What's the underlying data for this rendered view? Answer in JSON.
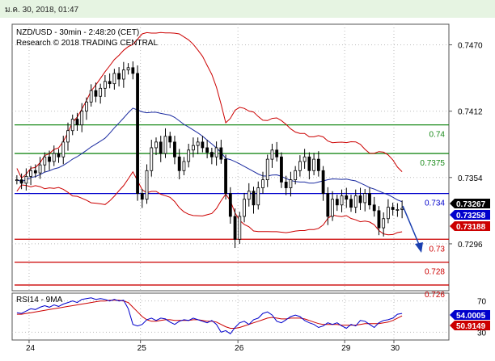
{
  "window": {
    "timestamp": "ม.ค. 30, 2018, 01:47"
  },
  "chart_data": [
    {
      "type": "candlestick",
      "title": "NZD/USD - 30min - 2:48:20 (CET)",
      "subtitle": "Research © 2018 TRADING CENTRAL",
      "y_axis_labels": [
        "0.7470",
        "0.7412",
        "0.7354",
        "0.7296"
      ],
      "ylim": [
        0.7255,
        0.7488
      ],
      "x_labels": [
        "24",
        "25",
        "26",
        "29",
        "30"
      ],
      "grid": true,
      "levels": [
        {
          "label": "0.74",
          "value": 0.74,
          "color": "#1a8a1a"
        },
        {
          "label": "0.7375",
          "value": 0.7375,
          "color": "#1a8a1a"
        },
        {
          "label": "0.734",
          "value": 0.734,
          "color": "#0000cc"
        },
        {
          "label": "0.73",
          "value": 0.73,
          "color": "#cc0000"
        },
        {
          "label": "0.728",
          "value": 0.728,
          "color": "#cc0000"
        },
        {
          "label": "0.726",
          "value": 0.726,
          "color": "#cc0000"
        }
      ],
      "price_badges": [
        {
          "label": "0.73267",
          "color": "#000000"
        },
        {
          "label": "0.73258",
          "color": "#0000cc"
        },
        {
          "label": "0.73188",
          "color": "#cc0000"
        }
      ],
      "series": [
        {
          "name": "close",
          "values": [
            0.7352,
            0.7349,
            0.7355,
            0.736,
            0.7358,
            0.7365,
            0.7372,
            0.7368,
            0.7375,
            0.7372,
            0.7385,
            0.7395,
            0.7405,
            0.74,
            0.7412,
            0.742,
            0.743,
            0.7425,
            0.7432,
            0.7438,
            0.7436,
            0.7445,
            0.744,
            0.7448,
            0.745,
            0.7445,
            0.734,
            0.7335,
            0.736,
            0.738,
            0.7385,
            0.7375,
            0.739,
            0.7385,
            0.7372,
            0.736,
            0.7368,
            0.7378,
            0.7382,
            0.7385,
            0.738,
            0.7376,
            0.7372,
            0.738,
            0.737,
            0.734,
            0.732,
            0.73,
            0.732,
            0.7335,
            0.7342,
            0.733,
            0.7345,
            0.7352,
            0.737,
            0.7378,
            0.7372,
            0.735,
            0.7345,
            0.7352,
            0.736,
            0.7368,
            0.7372,
            0.736,
            0.737,
            0.736,
            0.734,
            0.732,
            0.7335,
            0.733,
            0.7338,
            0.7335,
            0.7328,
            0.7338,
            0.7332,
            0.734,
            0.733,
            0.7325,
            0.731,
            0.7318,
            0.7328,
            0.7326,
            0.7326,
            0.7327
          ]
        }
      ]
    },
    {
      "type": "line",
      "title": "RSI14 - 9MA",
      "y_axis_labels": [
        "70",
        "30"
      ],
      "ylim": [
        20,
        80
      ],
      "value_badges": [
        {
          "label": "54.0005",
          "color": "#0000cc"
        },
        {
          "label": "50.9149",
          "color": "#cc0000"
        }
      ],
      "series": [
        {
          "name": "RSI14",
          "values": [
            55,
            54,
            57,
            60,
            59,
            62,
            64,
            62,
            65,
            63,
            66,
            68,
            70,
            68,
            72,
            73,
            74,
            72,
            73,
            72,
            70,
            72,
            70,
            71,
            60,
            40,
            38,
            40,
            46,
            48,
            45,
            48,
            47,
            43,
            40,
            44,
            46,
            45,
            48,
            46,
            44,
            42,
            45,
            40,
            30,
            32,
            28,
            36,
            42,
            44,
            40,
            46,
            48,
            54,
            56,
            52,
            44,
            42,
            46,
            50,
            52,
            50,
            45,
            42,
            40,
            36,
            38,
            42,
            40,
            42,
            38,
            35,
            40,
            38,
            45,
            44,
            40,
            36,
            42,
            45,
            46,
            48,
            53,
            54
          ]
        },
        {
          "name": "9MA",
          "values": [
            53,
            53,
            54,
            55,
            56,
            57,
            58,
            59,
            60,
            61,
            62,
            63,
            64,
            65,
            66,
            67,
            68,
            69,
            70,
            70,
            71,
            71,
            71,
            70,
            68,
            62,
            56,
            50,
            46,
            44,
            44,
            45,
            46,
            46,
            45,
            45,
            45,
            45,
            46,
            46,
            45,
            44,
            44,
            43,
            40,
            37,
            35,
            35,
            36,
            38,
            40,
            42,
            44,
            46,
            48,
            49,
            48,
            47,
            47,
            48,
            48,
            48,
            47,
            45,
            43,
            41,
            40,
            40,
            40,
            40,
            39,
            39,
            39,
            39,
            40,
            41,
            41,
            41,
            41,
            42,
            43,
            45,
            48,
            50.9
          ]
        }
      ]
    }
  ]
}
